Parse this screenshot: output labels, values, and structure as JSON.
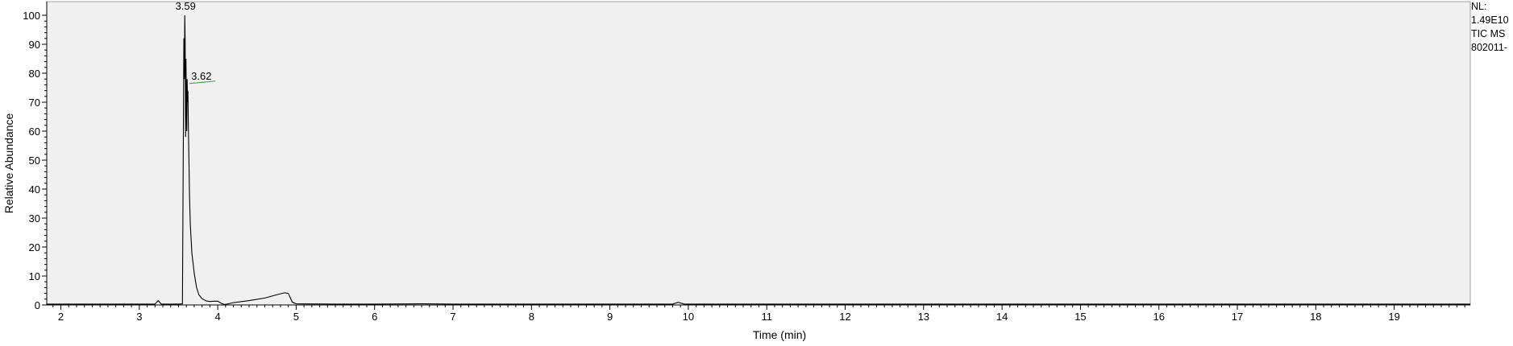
{
  "side_info": {
    "nl_label": "NL:",
    "nl_value": "1.49E10",
    "trace": "TIC  MS",
    "file": "802011-"
  },
  "chart_data": {
    "type": "line",
    "xlabel": "Time (min)",
    "ylabel": "Relative Abundance",
    "xlim": [
      1.82,
      19.97
    ],
    "ylim": [
      0,
      100
    ],
    "x_ticks": [
      2,
      3,
      4,
      5,
      6,
      7,
      8,
      9,
      10,
      11,
      12,
      13,
      14,
      15,
      16,
      17,
      18,
      19
    ],
    "y_ticks": [
      0,
      10,
      20,
      30,
      40,
      50,
      60,
      70,
      80,
      90,
      100
    ],
    "grid": false,
    "legend": "none",
    "line_color": "#000000",
    "background": "#f0f0f0",
    "series": [
      {
        "x": [
          1.82,
          2.5,
          3.2,
          3.24,
          3.28,
          3.5,
          3.55,
          3.556,
          3.562,
          3.568,
          3.574,
          3.58,
          3.585,
          3.59,
          3.595,
          3.6,
          3.605,
          3.61,
          3.615,
          3.62,
          3.625,
          3.63,
          3.64,
          3.65,
          3.67,
          3.7,
          3.73,
          3.76,
          3.8,
          3.85,
          3.9,
          3.95,
          4.0,
          4.05,
          4.08,
          4.1,
          4.2,
          4.4,
          4.6,
          4.75,
          4.85,
          4.9,
          4.95,
          5.0,
          5.5,
          6.0,
          6.6,
          7.0,
          8.0,
          9.0,
          9.8,
          9.87,
          9.95,
          11.0,
          14.0,
          17.0,
          19.97
        ],
        "y": [
          0.3,
          0.3,
          0.3,
          1.5,
          0.3,
          0.3,
          0.4,
          30,
          60,
          92,
          78,
          100,
          90,
          58,
          85,
          70,
          60,
          78,
          70,
          74,
          62,
          55,
          38,
          28,
          18,
          11,
          6,
          3.5,
          2.2,
          1.4,
          1.2,
          1.3,
          1.3,
          0.5,
          0.2,
          0.2,
          0.8,
          1.5,
          2.4,
          3.5,
          4.2,
          4.0,
          1.0,
          0.4,
          0.3,
          0.3,
          0.4,
          0.3,
          0.3,
          0.3,
          0.3,
          0.9,
          0.3,
          0.3,
          0.3,
          0.3,
          0.3
        ]
      }
    ],
    "annotations": [
      {
        "label": "3.59",
        "x": 3.59,
        "y": 100
      },
      {
        "label": "3.62",
        "x": 3.62,
        "y": 77
      }
    ]
  }
}
